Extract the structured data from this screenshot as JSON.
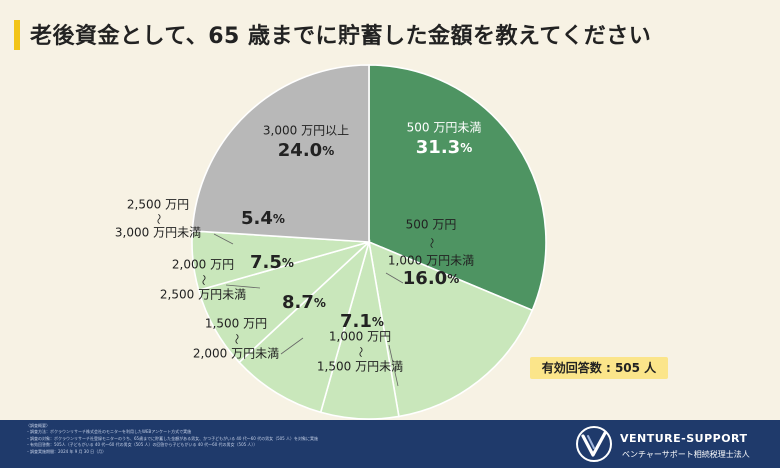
{
  "title": "老後資金として、65 歳までに貯蓄した金額を教えてください",
  "respondents": "有効回答数 : 505 人",
  "colors": {
    "accent": "#f2c418",
    "dark_green": "#4e9462",
    "light_green": "#c9e7bb",
    "gray": "#b8b8b8",
    "navy": "#1f3a6b",
    "badge": "#fbe58a"
  },
  "chart_data": {
    "type": "pie",
    "title": "老後資金として、65 歳までに貯蓄した金額を教えてください",
    "start_angle_deg": 0,
    "direction": "clockwise",
    "unit": "%",
    "slices": [
      {
        "label_lines": [
          "500 万円未満"
        ],
        "value": 31.3,
        "value_label": "31.3%",
        "color": "#4e9462",
        "label_inside": true,
        "label_color": "#ffffff"
      },
      {
        "label_lines": [
          "500 万円",
          "～",
          "1,000 万円未満"
        ],
        "value": 16.0,
        "value_label": "16.0%",
        "color": "#c9e7bb",
        "label_inside": true,
        "label_color": "#222222"
      },
      {
        "label_lines": [
          "1,000 万円",
          "～",
          "1,500 万円未満"
        ],
        "value": 7.1,
        "value_label": "7.1%",
        "color": "#c9e7bb",
        "label_inside": false,
        "label_color": "#222222"
      },
      {
        "label_lines": [
          "1,500 万円",
          "～",
          "2,000 万円未満"
        ],
        "value": 8.7,
        "value_label": "8.7%",
        "color": "#c9e7bb",
        "label_inside": false,
        "label_color": "#222222"
      },
      {
        "label_lines": [
          "2,000 万円",
          "～",
          "2,500 万円未満"
        ],
        "value": 7.5,
        "value_label": "7.5%",
        "color": "#c9e7bb",
        "label_inside": false,
        "label_color": "#222222"
      },
      {
        "label_lines": [
          "2,500 万円",
          "～",
          "3,000 万円未満"
        ],
        "value": 5.4,
        "value_label": "5.4%",
        "color": "#c9e7bb",
        "label_inside": false,
        "label_color": "#222222"
      },
      {
        "label_lines": [
          "3,000 万円以上"
        ],
        "value": 24.0,
        "value_label": "24.0%",
        "color": "#b8b8b8",
        "label_inside": true,
        "label_color": "#222222"
      }
    ]
  },
  "footer": {
    "notes": [
      "〈調査概要〉",
      "・調査方法：ボクラウンリサーチ株式会社のモニターを利用したWEBアンケート方式で実施",
      "・調査の対象：ボクラウンリサーチ社登録モニターのうち、65歳までに貯蓄した金額がある男女、かつ子どもがいる 40 代～60 代の男女（505 人）を対象に実施",
      "・有効回答数：505人（子どもがいる 40 代～60 代の男女（505 人）の回答から子どもがいる 40 代～60 代の男女（505 人））",
      "・調査実施期間：2024 年 9 月 30 日（月）"
    ],
    "brand_name": "VENTURE-SUPPORT",
    "brand_sub": "ベンチャーサポート相続税理士法人"
  }
}
